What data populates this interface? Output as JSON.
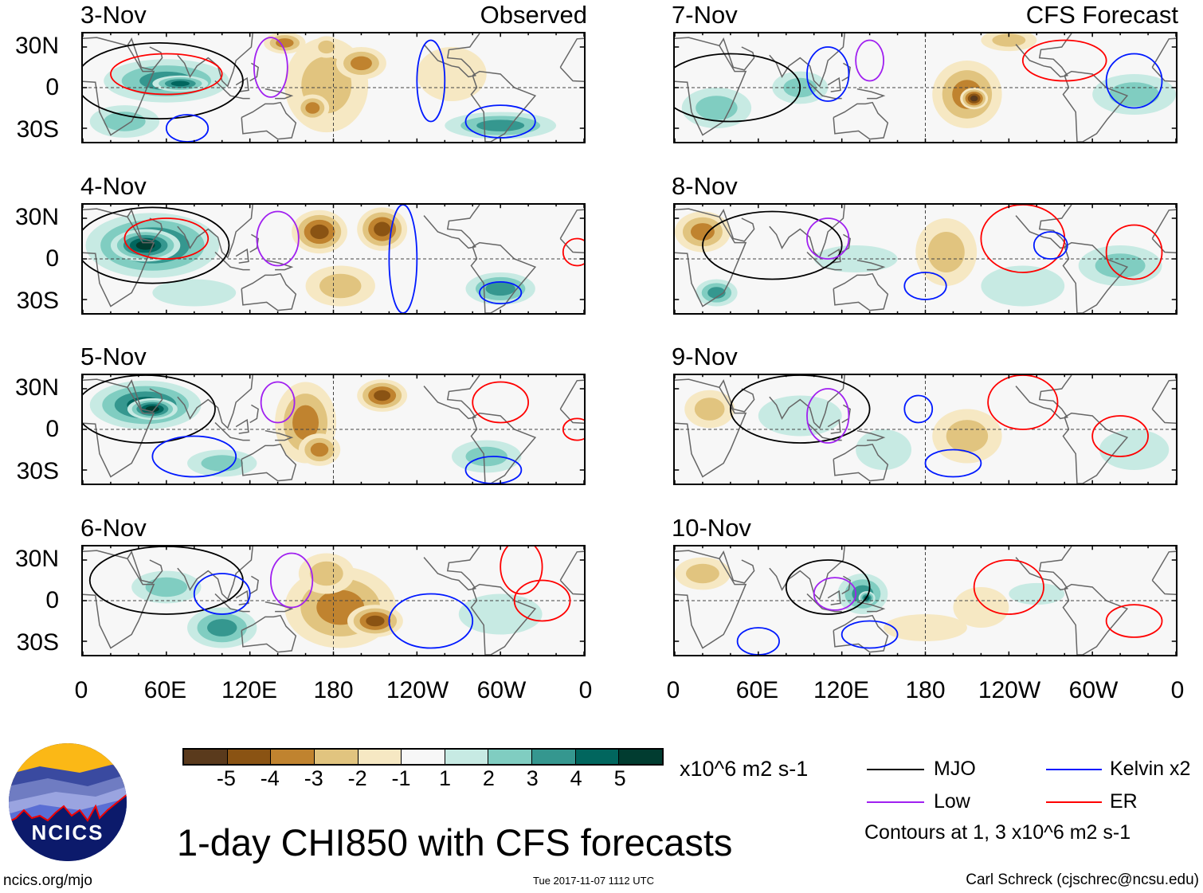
{
  "panels": {
    "observed_label": "Observed",
    "forecast_label": "CFS Forecast",
    "observed_dates": [
      "3-Nov",
      "4-Nov",
      "5-Nov",
      "6-Nov"
    ],
    "forecast_dates": [
      "7-Nov",
      "8-Nov",
      "9-Nov",
      "10-Nov"
    ]
  },
  "axes": {
    "lat_labels": [
      "30N",
      "0",
      "30S"
    ],
    "lon_labels": [
      "0",
      "60E",
      "120E",
      "180",
      "120W",
      "60W",
      "0"
    ]
  },
  "colorbar": {
    "labels": [
      "-5",
      "-4",
      "-3",
      "-2",
      "-1",
      "1",
      "2",
      "3",
      "4",
      "5"
    ],
    "colors": [
      "#5a3a1c",
      "#8a5313",
      "#c0832f",
      "#e1c47f",
      "#f6e8c3",
      "#f7f7f7",
      "#c7eae3",
      "#80cdc1",
      "#35978f",
      "#01665e",
      "#013c30"
    ],
    "units": "x10^6 m2 s-1"
  },
  "legend": {
    "items": [
      {
        "label": "MJO",
        "color": "#000000"
      },
      {
        "label": "Kelvin x2",
        "color": "#0019ff"
      },
      {
        "label": "Low",
        "color": "#a020f0"
      },
      {
        "label": "ER",
        "color": "#ff0000"
      }
    ],
    "contours_note": "Contours at 1, 3 x10^6 m2 s-1"
  },
  "title": "1-day CHI850 with CFS forecasts",
  "footer": {
    "url": "ncics.org/mjo",
    "timestamp": "Tue 2017-11-07 1112 UTC",
    "author": "Carl Schreck (cjschrec@ncsu.edu)"
  },
  "logo": {
    "text": "NCICS"
  }
}
